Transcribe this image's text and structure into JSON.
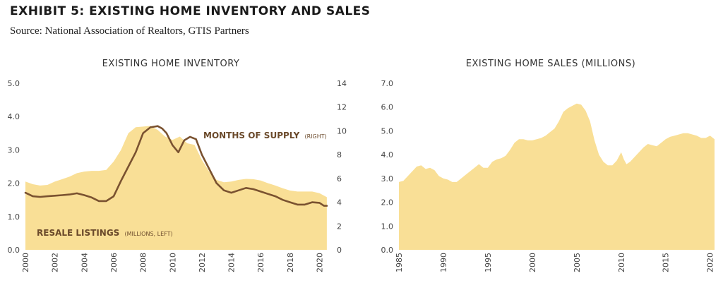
{
  "header": {
    "title": "EXHIBIT 5: EXISTING HOME INVENTORY AND SALES",
    "source": "Source: National Association of Realtors, GTIS Partners"
  },
  "colors": {
    "area": "#f9df96",
    "line": "#7a5230",
    "annotation": "#6b4a2b"
  },
  "chart_data": [
    {
      "type": "area",
      "title": "EXISTING HOME INVENTORY",
      "xlabel": "",
      "ylabel": "",
      "xlim": [
        2000,
        2020.6
      ],
      "ylim": [
        0,
        5
      ],
      "y2lim": [
        0,
        14
      ],
      "x_ticks": [
        "2000",
        "2002",
        "2004",
        "2006",
        "2008",
        "2010",
        "2012",
        "2014",
        "2016",
        "2018",
        "2020"
      ],
      "y_ticks": [
        "0.0",
        "1.0",
        "2.0",
        "3.0",
        "4.0",
        "5.0"
      ],
      "y2_ticks": [
        "0",
        "2",
        "4",
        "6",
        "8",
        "10",
        "12",
        "14"
      ],
      "grid": false,
      "annotations": [
        {
          "text": "RESALE LISTINGS",
          "suffix": "(MILLIONS, LEFT)"
        },
        {
          "text": "MONTHS OF SUPPLY",
          "suffix": "(RIGHT)"
        }
      ],
      "series": [
        {
          "name": "RESALE LISTINGS (MILLIONS, LEFT)",
          "axis": "left",
          "style": "area",
          "x": [
            2000,
            2000.5,
            2001,
            2001.5,
            2002,
            2002.5,
            2003,
            2003.5,
            2004,
            2004.5,
            2005,
            2005.5,
            2006,
            2006.5,
            2007,
            2007.5,
            2008,
            2008.5,
            2009,
            2009.5,
            2010,
            2010.5,
            2011,
            2011.5,
            2012,
            2012.5,
            2013,
            2013.5,
            2014,
            2014.5,
            2015,
            2015.5,
            2016,
            2016.5,
            2017,
            2017.5,
            2018,
            2018.5,
            2019,
            2019.5,
            2020,
            2020.5
          ],
          "values": [
            2.05,
            1.97,
            1.93,
            1.95,
            2.05,
            2.12,
            2.2,
            2.3,
            2.35,
            2.37,
            2.37,
            2.4,
            2.65,
            3.0,
            3.5,
            3.68,
            3.7,
            3.72,
            3.6,
            3.4,
            3.3,
            3.4,
            3.2,
            3.15,
            2.7,
            2.35,
            2.1,
            2.03,
            2.05,
            2.1,
            2.13,
            2.12,
            2.08,
            2.0,
            1.93,
            1.85,
            1.78,
            1.75,
            1.75,
            1.75,
            1.7,
            1.58
          ]
        },
        {
          "name": "MONTHS OF SUPPLY (RIGHT)",
          "axis": "right",
          "style": "line",
          "x": [
            2000,
            2000.5,
            2001,
            2001.5,
            2002,
            2002.5,
            2003,
            2003.5,
            2004,
            2004.5,
            2005,
            2005.5,
            2006,
            2006.5,
            2007,
            2007.5,
            2008,
            2008.5,
            2009,
            2009.3,
            2009.6,
            2010,
            2010.4,
            2010.8,
            2011.2,
            2011.6,
            2012,
            2012.5,
            2013,
            2013.5,
            2014,
            2014.5,
            2015,
            2015.5,
            2016,
            2016.5,
            2017,
            2017.5,
            2018,
            2018.5,
            2019,
            2019.5,
            2020,
            2020.3,
            2020.5
          ],
          "values": [
            4.8,
            4.5,
            4.45,
            4.5,
            4.55,
            4.6,
            4.65,
            4.75,
            4.6,
            4.4,
            4.1,
            4.1,
            4.5,
            5.8,
            7.0,
            8.2,
            9.8,
            10.3,
            10.4,
            10.2,
            9.8,
            8.8,
            8.2,
            9.2,
            9.5,
            9.3,
            8.0,
            6.8,
            5.6,
            5.0,
            4.8,
            5.0,
            5.2,
            5.1,
            4.9,
            4.7,
            4.5,
            4.2,
            4.0,
            3.8,
            3.8,
            4.0,
            3.95,
            3.7,
            3.7
          ]
        }
      ]
    },
    {
      "type": "area",
      "title": "EXISTING HOME SALES (MILLIONS)",
      "xlabel": "",
      "ylabel": "",
      "xlim": [
        1985,
        2020.5
      ],
      "ylim": [
        0,
        7
      ],
      "x_ticks": [
        "1985",
        "1990",
        "1995",
        "2000",
        "2005",
        "2010",
        "2015",
        "2020"
      ],
      "y_ticks": [
        "0.0",
        "1.0",
        "2.0",
        "3.0",
        "4.0",
        "5.0",
        "6.0",
        "7.0"
      ],
      "grid": false,
      "series": [
        {
          "style": "area",
          "x": [
            1985,
            1985.5,
            1986,
            1986.5,
            1987,
            1987.5,
            1988,
            1988.5,
            1989,
            1989.5,
            1990,
            1990.5,
            1991,
            1991.5,
            1992,
            1992.5,
            1993,
            1993.5,
            1994,
            1994.5,
            1995,
            1995.5,
            1996,
            1996.5,
            1997,
            1997.5,
            1998,
            1998.5,
            1999,
            1999.5,
            2000,
            2000.5,
            2001,
            2001.5,
            2002,
            2002.5,
            2003,
            2003.5,
            2004,
            2004.5,
            2005,
            2005.5,
            2006,
            2006.5,
            2007,
            2007.5,
            2008,
            2008.5,
            2009,
            2009.5,
            2010,
            2010.3,
            2010.6,
            2011,
            2011.5,
            2012,
            2012.5,
            2013,
            2013.5,
            2014,
            2014.5,
            2015,
            2015.5,
            2016,
            2016.5,
            2017,
            2017.5,
            2018,
            2018.5,
            2019,
            2019.5,
            2020,
            2020.5
          ],
          "values": [
            2.85,
            2.9,
            3.1,
            3.3,
            3.5,
            3.55,
            3.4,
            3.45,
            3.35,
            3.1,
            3.0,
            2.95,
            2.85,
            2.85,
            3.0,
            3.15,
            3.3,
            3.45,
            3.6,
            3.45,
            3.45,
            3.7,
            3.8,
            3.85,
            3.95,
            4.2,
            4.5,
            4.65,
            4.65,
            4.6,
            4.6,
            4.65,
            4.7,
            4.8,
            4.95,
            5.1,
            5.4,
            5.8,
            5.95,
            6.05,
            6.15,
            6.1,
            5.85,
            5.4,
            4.6,
            4.0,
            3.7,
            3.55,
            3.55,
            3.75,
            4.1,
            3.8,
            3.6,
            3.7,
            3.9,
            4.1,
            4.3,
            4.45,
            4.4,
            4.35,
            4.5,
            4.65,
            4.75,
            4.8,
            4.85,
            4.9,
            4.9,
            4.85,
            4.8,
            4.7,
            4.7,
            4.8,
            4.65
          ]
        }
      ]
    }
  ]
}
